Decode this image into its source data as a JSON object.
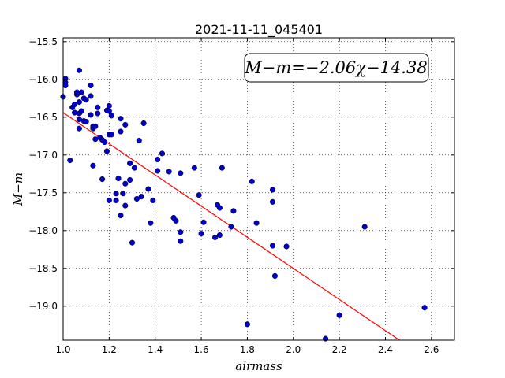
{
  "chart_data": {
    "type": "scatter",
    "title": "2021-11-11_045401",
    "xlabel": "airmass",
    "ylabel": "M−m",
    "equation": "M−m=−2.06χ−14.38",
    "xlim": [
      1.0,
      2.7
    ],
    "ylim": [
      -19.45,
      -15.45
    ],
    "y_inverted": true,
    "grid": "dotted",
    "xticks": [
      1.0,
      1.2,
      1.4,
      1.6,
      1.8,
      2.0,
      2.2,
      2.4,
      2.6
    ],
    "xtick_labels": [
      "1.0",
      "1.2",
      "1.4",
      "1.6",
      "1.8",
      "2.0",
      "2.2",
      "2.4",
      "2.6"
    ],
    "yticks": [
      -15.5,
      -16.0,
      -16.5,
      -17.0,
      -17.5,
      -18.0,
      -18.5,
      -19.0
    ],
    "ytick_labels": [
      "−15.5",
      "−16.0",
      "−16.5",
      "−17.0",
      "−17.5",
      "−18.0",
      "−18.5",
      "−19.0"
    ],
    "fit": {
      "slope": -2.06,
      "intercept": -14.38,
      "x_range": [
        1.0,
        2.46
      ],
      "color": "#ff0000"
    },
    "point_color": "#0000cc",
    "points": [
      [
        1.0,
        -16.23
      ],
      [
        1.01,
        -16.04
      ],
      [
        1.01,
        -16.08
      ],
      [
        1.01,
        -15.99
      ],
      [
        1.03,
        -17.07
      ],
      [
        1.04,
        -16.37
      ],
      [
        1.05,
        -16.44
      ],
      [
        1.05,
        -16.33
      ],
      [
        1.06,
        -16.2
      ],
      [
        1.06,
        -16.17
      ],
      [
        1.07,
        -15.88
      ],
      [
        1.07,
        -16.3
      ],
      [
        1.07,
        -16.45
      ],
      [
        1.07,
        -16.53
      ],
      [
        1.07,
        -16.65
      ],
      [
        1.08,
        -16.17
      ],
      [
        1.08,
        -16.42
      ],
      [
        1.09,
        -16.25
      ],
      [
        1.09,
        -16.55
      ],
      [
        1.1,
        -16.27
      ],
      [
        1.1,
        -16.56
      ],
      [
        1.12,
        -16.08
      ],
      [
        1.12,
        -16.22
      ],
      [
        1.12,
        -16.47
      ],
      [
        1.13,
        -16.62
      ],
      [
        1.13,
        -16.65
      ],
      [
        1.13,
        -17.14
      ],
      [
        1.14,
        -16.62
      ],
      [
        1.14,
        -16.79
      ],
      [
        1.15,
        -16.37
      ],
      [
        1.15,
        -16.45
      ],
      [
        1.16,
        -16.77
      ],
      [
        1.17,
        -17.32
      ],
      [
        1.17,
        -16.8
      ],
      [
        1.18,
        -16.83
      ],
      [
        1.19,
        -16.41
      ],
      [
        1.19,
        -16.95
      ],
      [
        1.2,
        -16.35
      ],
      [
        1.2,
        -16.42
      ],
      [
        1.2,
        -16.73
      ],
      [
        1.2,
        -17.6
      ],
      [
        1.21,
        -16.48
      ],
      [
        1.21,
        -16.73
      ],
      [
        1.23,
        -17.51
      ],
      [
        1.23,
        -17.6
      ],
      [
        1.24,
        -17.31
      ],
      [
        1.25,
        -16.69
      ],
      [
        1.25,
        -16.52
      ],
      [
        1.25,
        -17.8
      ],
      [
        1.26,
        -17.51
      ],
      [
        1.27,
        -16.6
      ],
      [
        1.27,
        -17.38
      ],
      [
        1.27,
        -17.67
      ],
      [
        1.29,
        -17.11
      ],
      [
        1.29,
        -17.33
      ],
      [
        1.3,
        -18.16
      ],
      [
        1.31,
        -17.17
      ],
      [
        1.32,
        -17.58
      ],
      [
        1.33,
        -16.81
      ],
      [
        1.34,
        -17.55
      ],
      [
        1.35,
        -16.58
      ],
      [
        1.37,
        -17.45
      ],
      [
        1.38,
        -17.9
      ],
      [
        1.39,
        -17.6
      ],
      [
        1.41,
        -17.06
      ],
      [
        1.41,
        -17.21
      ],
      [
        1.43,
        -16.98
      ],
      [
        1.46,
        -17.22
      ],
      [
        1.48,
        -17.83
      ],
      [
        1.49,
        -17.87
      ],
      [
        1.51,
        -17.24
      ],
      [
        1.51,
        -18.02
      ],
      [
        1.51,
        -18.14
      ],
      [
        1.57,
        -17.17
      ],
      [
        1.59,
        -17.53
      ],
      [
        1.6,
        -18.04
      ],
      [
        1.61,
        -17.89
      ],
      [
        1.66,
        -18.09
      ],
      [
        1.67,
        -17.66
      ],
      [
        1.68,
        -17.7
      ],
      [
        1.68,
        -18.06
      ],
      [
        1.69,
        -17.17
      ],
      [
        1.73,
        -17.95
      ],
      [
        1.74,
        -17.74
      ],
      [
        1.8,
        -19.24
      ],
      [
        1.82,
        -17.35
      ],
      [
        1.84,
        -17.9
      ],
      [
        1.91,
        -17.46
      ],
      [
        1.91,
        -17.62
      ],
      [
        1.91,
        -18.2
      ],
      [
        1.92,
        -18.6
      ],
      [
        1.97,
        -18.21
      ],
      [
        2.14,
        -19.43
      ],
      [
        2.2,
        -19.12
      ],
      [
        2.31,
        -17.95
      ],
      [
        2.57,
        -19.02
      ]
    ]
  }
}
